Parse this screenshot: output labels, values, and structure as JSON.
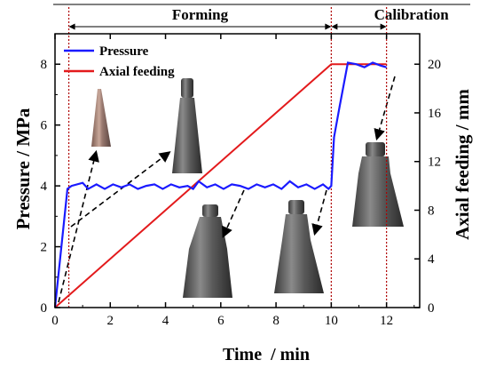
{
  "chart_data": {
    "type": "line",
    "phases": [
      {
        "label": "Forming",
        "x_start": 0.5,
        "x_end": 10
      },
      {
        "label": "Calibration",
        "x_start": 10,
        "x_end": 12
      }
    ],
    "xlabel": "Time  / min",
    "ylabel_left": "Pressure / MPa",
    "ylabel_right": "Axial feeding / mm",
    "xlim": [
      0,
      13.2
    ],
    "ylim_left": [
      0,
      9
    ],
    "ylim_right": [
      0,
      22.5
    ],
    "xticks": [
      0,
      2,
      4,
      6,
      8,
      10,
      12
    ],
    "yticks_left": [
      0,
      2,
      4,
      6,
      8
    ],
    "yticks_right": [
      0,
      4,
      8,
      12,
      16,
      20
    ],
    "legend": {
      "placement": "top-left"
    },
    "series": [
      {
        "name": "Pressure",
        "axis": "left",
        "color": "#1a1aff",
        "x": [
          0,
          0.45,
          0.6,
          1.0,
          1.2,
          1.5,
          1.8,
          2.1,
          2.4,
          2.7,
          3.0,
          3.3,
          3.6,
          3.9,
          4.2,
          4.5,
          4.8,
          5.0,
          5.2,
          5.5,
          5.8,
          6.1,
          6.4,
          6.7,
          7.0,
          7.3,
          7.6,
          7.9,
          8.2,
          8.5,
          8.8,
          9.1,
          9.4,
          9.7,
          9.9,
          10.0,
          10.1,
          10.3,
          10.6,
          10.9,
          11.2,
          11.5,
          11.8,
          12.0
        ],
        "y": [
          0,
          3.9,
          4.0,
          4.1,
          3.9,
          4.05,
          3.9,
          4.05,
          3.95,
          4.05,
          3.9,
          4.0,
          4.05,
          3.9,
          4.05,
          3.95,
          4.0,
          3.9,
          4.15,
          3.95,
          4.05,
          3.9,
          4.05,
          4.0,
          3.9,
          4.05,
          3.95,
          4.05,
          3.9,
          4.15,
          3.95,
          4.05,
          3.9,
          4.05,
          3.9,
          4.0,
          5.6,
          6.6,
          8.05,
          8.0,
          7.9,
          8.05,
          7.95,
          7.9
        ]
      },
      {
        "name": "Axial feeding",
        "axis": "right",
        "color": "#e31a1c",
        "x": [
          0,
          10,
          12
        ],
        "y": [
          0,
          20,
          20
        ]
      }
    ],
    "grid": false,
    "annotations": "Photographs of the tube at successive forming stages (initial cone, intermediate stages, final shape) with dashed arrows pointing to the curves"
  }
}
